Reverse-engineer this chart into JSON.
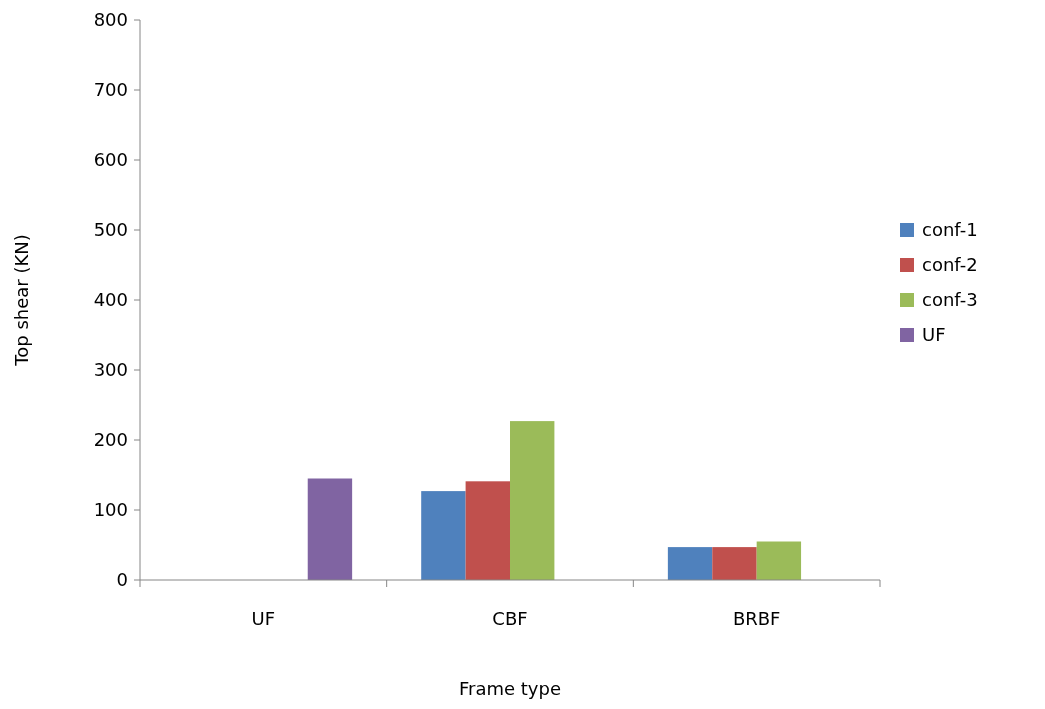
{
  "chart_data": {
    "type": "bar",
    "xlabel": "Frame type",
    "ylabel": "Top shear (KN)",
    "categories": [
      "UF",
      "CBF",
      "BRBF"
    ],
    "series": [
      {
        "name": "conf-1",
        "color": "#4f81bd",
        "values": [
          null,
          127,
          47
        ]
      },
      {
        "name": "conf-2",
        "color": "#c0504d",
        "values": [
          null,
          141,
          47
        ]
      },
      {
        "name": "conf-3",
        "color": "#9bbb59",
        "values": [
          null,
          227,
          55
        ]
      },
      {
        "name": "UF",
        "color": "#8064a2",
        "values": [
          145,
          null,
          null
        ]
      }
    ],
    "ylim": [
      0,
      800
    ],
    "yticks": [
      0,
      100,
      200,
      300,
      400,
      500,
      600,
      700,
      800
    ],
    "grid": false,
    "legend": "right"
  }
}
